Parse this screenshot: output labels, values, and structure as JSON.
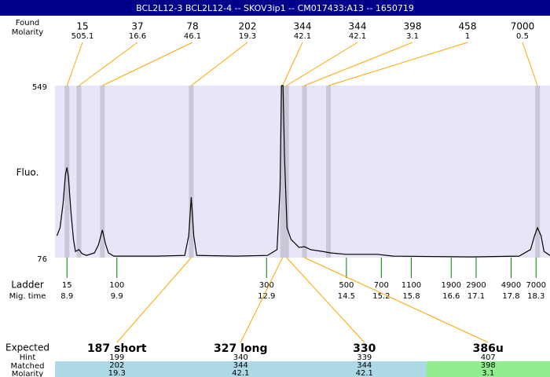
{
  "chart_data": {
    "type": "electropherogram",
    "title": "BCL2L12-3  BCL2L12-4 -- SKOV3ip1 -- CM017433:A13 -- 1650719",
    "found_label": "Found",
    "molarity_label": "Molarity",
    "y_label": "Fluo.",
    "ylim": [
      76,
      549
    ],
    "yticks": [
      76,
      549
    ],
    "xlim": [
      8.66,
      18.58
    ],
    "plot_color": "#e6e6f8",
    "peak_color": "#c8c8d8",
    "link_color": "#ffa500",
    "ladder_color": "#008000",
    "peaks": {
      "sizes": [
        15,
        37,
        78,
        202,
        344,
        344,
        398,
        458,
        7000
      ],
      "molarities": [
        505.1,
        16.6,
        46.1,
        19.3,
        42.1,
        42.1,
        3.1,
        1,
        0.5
      ],
      "times": [
        8.9,
        9.14,
        9.61,
        11.39,
        13.22,
        13.3,
        13.66,
        14.14,
        18.33
      ]
    },
    "trace": {
      "color": "#000000",
      "x": [
        8.7,
        8.76,
        8.82,
        8.87,
        8.9,
        8.93,
        8.98,
        9.03,
        9.07,
        9.14,
        9.2,
        9.29,
        9.45,
        9.53,
        9.61,
        9.67,
        9.73,
        9.84,
        10.71,
        11.26,
        11.34,
        11.39,
        11.44,
        11.5,
        12.29,
        12.92,
        13.11,
        13.17,
        13.2,
        13.23,
        13.26,
        13.31,
        13.39,
        13.55,
        13.66,
        13.78,
        14.02,
        14.18,
        14.49,
        15.12,
        15.44,
        17.01,
        17.96,
        18.19,
        18.27,
        18.33,
        18.4,
        18.46,
        18.58
      ],
      "values": [
        136,
        158,
        223,
        305,
        324,
        298,
        201,
        126,
        93,
        98,
        87,
        82,
        89,
        111,
        152,
        115,
        89,
        80,
        80,
        82,
        136,
        242,
        136,
        82,
        80,
        82,
        98,
        266,
        549,
        549,
        352,
        158,
        126,
        104,
        106,
        98,
        93,
        89,
        85,
        85,
        80,
        78,
        80,
        98,
        136,
        158,
        136,
        93,
        82
      ]
    },
    "ladder": {
      "label": "Ladder",
      "time_label": "Mig. time",
      "sizes": [
        15,
        100,
        300,
        500,
        700,
        1100,
        1900,
        2900,
        4900,
        7000
      ],
      "times": [
        8.9,
        9.9,
        12.9,
        14.5,
        15.2,
        15.8,
        16.6,
        17.1,
        17.8,
        18.3
      ]
    },
    "expected": {
      "label": "Expected",
      "hint_label": "Hint",
      "matched_label": "Matched",
      "molarity_label": "Molarity",
      "names": [
        "187 short",
        "327 long",
        "330",
        "386u"
      ],
      "hints": [
        199,
        340,
        339,
        407
      ],
      "matched": [
        202,
        344,
        344,
        398
      ],
      "molarities": [
        19.3,
        42.1,
        42.1,
        3.1
      ],
      "colors": [
        "#add8e6",
        "#add8e6",
        "#add8e6",
        "#90ee90"
      ]
    }
  }
}
